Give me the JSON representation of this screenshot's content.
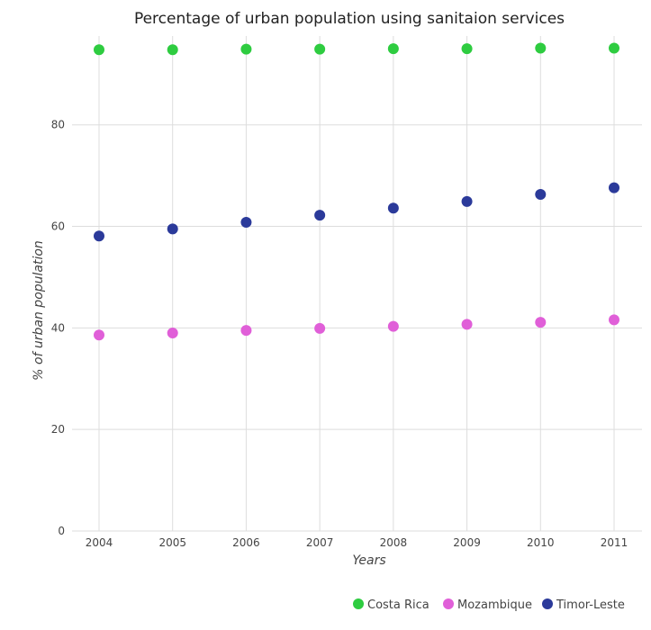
{
  "chart_data": {
    "type": "scatter",
    "title": "Percentage of urban population using sanitaion services",
    "xlabel": "Years",
    "ylabel": "% of urban population",
    "categories": [
      "2004",
      "2005",
      "2006",
      "2007",
      "2008",
      "2009",
      "2010",
      "2011"
    ],
    "ylim": [
      0,
      97.5
    ],
    "yticks": [
      0,
      20,
      40,
      60,
      80
    ],
    "grid": true,
    "legend_position": "bottom-right",
    "series": [
      {
        "name": "Costa Rica",
        "color": "#2ecc40",
        "values": [
          94.8,
          94.8,
          94.9,
          94.9,
          95.0,
          95.0,
          95.1,
          95.1
        ]
      },
      {
        "name": "Mozambique",
        "color": "#e05fd8",
        "values": [
          38.6,
          39.0,
          39.5,
          39.9,
          40.3,
          40.7,
          41.1,
          41.6
        ]
      },
      {
        "name": "Timor-Leste",
        "color": "#2b3a9a",
        "values": [
          58.1,
          59.5,
          60.8,
          62.2,
          63.6,
          64.9,
          66.3,
          67.6
        ]
      }
    ]
  }
}
